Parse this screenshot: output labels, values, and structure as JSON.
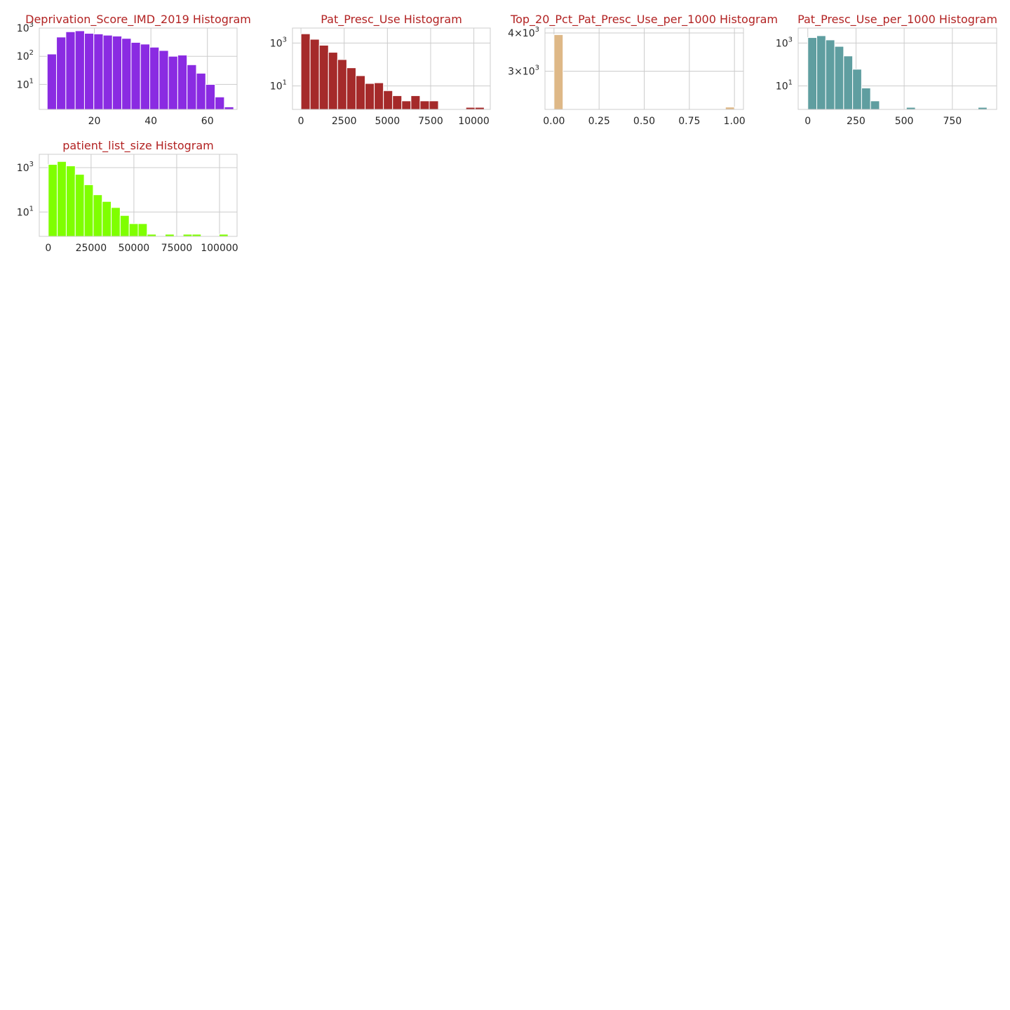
{
  "figure": {
    "title_color": "#b22222",
    "background": "#ffffff"
  },
  "chart_data": [
    {
      "type": "bar",
      "title": "Deprivation_Score_IMD_2019 Histogram",
      "color": "#8a2be2",
      "yscale": "log",
      "xlim": [
        0.5,
        70.5
      ],
      "ylim": [
        1.3,
        1000
      ],
      "xticks": [
        20,
        40,
        60
      ],
      "xtick_labels": [
        "20",
        "40",
        "60"
      ],
      "yticks": [
        10,
        100,
        1000
      ],
      "ytick_labels": [
        {
          "base": "10",
          "exp": "1"
        },
        {
          "base": "10",
          "exp": "2"
        },
        {
          "base": "10",
          "exp": "3"
        }
      ],
      "bin_edges": [
        3.3,
        6.6,
        9.9,
        13.2,
        16.5,
        19.8,
        23.1,
        26.4,
        29.7,
        33.0,
        36.3,
        39.6,
        42.9,
        46.2,
        49.5,
        52.8,
        56.1,
        59.4,
        62.7,
        66.0,
        69.3
      ],
      "values": [
        120,
        480,
        740,
        800,
        650,
        620,
        560,
        520,
        430,
        310,
        270,
        210,
        160,
        100,
        110,
        50,
        25,
        10,
        3.6,
        1.6
      ]
    },
    {
      "type": "bar",
      "title": "Pat_Presc_Use Histogram",
      "color": "#a52a2a",
      "yscale": "log",
      "xlim": [
        -490,
        10950
      ],
      "ylim": [
        0.8,
        5000
      ],
      "xticks": [
        0,
        2500,
        5000,
        7500,
        10000
      ],
      "xtick_labels": [
        "0",
        "2500",
        "5000",
        "7500",
        "10000"
      ],
      "yticks": [
        10,
        1000
      ],
      "ytick_labels": [
        {
          "base": "10",
          "exp": "1"
        },
        {
          "base": "10",
          "exp": "3"
        }
      ],
      "bin_edges": [
        0,
        530,
        1060,
        1590,
        2120,
        2650,
        3180,
        3710,
        4240,
        4770,
        5300,
        5830,
        6360,
        6890,
        7420,
        7950,
        8480,
        9010,
        9540,
        10070,
        10600
      ],
      "values": [
        2700,
        1500,
        790,
        370,
        170,
        70,
        30,
        13,
        14,
        6,
        3.5,
        2,
        3.5,
        2,
        2,
        0,
        0,
        0,
        1,
        1
      ]
    },
    {
      "type": "bar",
      "title": "Top_20_Pct_Pat_Presc_Use_per_1000 Histogram",
      "color": "#deb887",
      "yscale": "log",
      "xlim": [
        -0.05,
        1.05
      ],
      "ylim": [
        2250,
        4150
      ],
      "xticks": [
        0.0,
        0.25,
        0.5,
        0.75,
        1.0
      ],
      "xtick_labels": [
        "0.00",
        "0.25",
        "0.50",
        "0.75",
        "1.00"
      ],
      "yticks": [
        3000,
        4000
      ],
      "ytick_labels": [
        {
          "base": "3×10",
          "exp": "3"
        },
        {
          "base": "4×10",
          "exp": "3"
        }
      ],
      "bin_edges": [
        0.0,
        0.05,
        0.1,
        0.15,
        0.2,
        0.25,
        0.3,
        0.35,
        0.4,
        0.45,
        0.5,
        0.55,
        0.6,
        0.65,
        0.7,
        0.75,
        0.8,
        0.85,
        0.9,
        0.95,
        1.0
      ],
      "values": [
        3950,
        0,
        0,
        0,
        0,
        0,
        0,
        0,
        0,
        0,
        0,
        0,
        0,
        0,
        0,
        0,
        0,
        0,
        0,
        2290
      ]
    },
    {
      "type": "bar",
      "title": "Pat_Presc_Use_per_1000 Histogram",
      "color": "#5f9ea0",
      "yscale": "log",
      "xlim": [
        -50,
        980
      ],
      "ylim": [
        0.8,
        5000
      ],
      "xticks": [
        0,
        250,
        500,
        750
      ],
      "xtick_labels": [
        "0",
        "250",
        "500",
        "750"
      ],
      "yticks": [
        10,
        1000
      ],
      "ytick_labels": [
        {
          "base": "10",
          "exp": "1"
        },
        {
          "base": "10",
          "exp": "3"
        }
      ],
      "bin_edges": [
        0,
        46.5,
        93,
        139.5,
        186,
        232.5,
        279,
        325.5,
        372,
        418.5,
        465,
        511.5,
        558,
        604.5,
        651,
        697.5,
        744,
        790.5,
        837,
        883.5,
        930
      ],
      "values": [
        1800,
        2200,
        1400,
        700,
        250,
        60,
        8,
        2,
        0,
        0,
        0,
        1,
        0,
        0,
        0,
        0,
        0,
        0,
        0,
        1
      ]
    },
    {
      "type": "bar",
      "title": "patient_list_size Histogram",
      "color": "#7fff00",
      "yscale": "log",
      "xlim": [
        -5250,
        110250
      ],
      "ylim": [
        0.8,
        4000
      ],
      "xticks": [
        0,
        25000,
        50000,
        75000,
        100000
      ],
      "xtick_labels": [
        "0",
        "25000",
        "50000",
        "75000",
        "100000"
      ],
      "yticks": [
        10,
        1000
      ],
      "ytick_labels": [
        {
          "base": "10",
          "exp": "1"
        },
        {
          "base": "10",
          "exp": "3"
        }
      ],
      "bin_edges": [
        0,
        5250,
        10500,
        15750,
        21000,
        26250,
        31500,
        36750,
        42000,
        47250,
        52500,
        57750,
        63000,
        68250,
        73500,
        78750,
        84000,
        89250,
        94500,
        99750,
        105000
      ],
      "values": [
        1400,
        1900,
        1200,
        500,
        170,
        60,
        30,
        16,
        7,
        3,
        3,
        1,
        0,
        1,
        0,
        1,
        1,
        0,
        0,
        1
      ]
    }
  ]
}
